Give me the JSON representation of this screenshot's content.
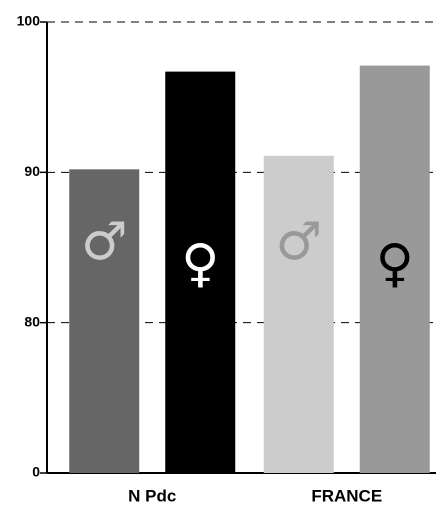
{
  "chart_data": {
    "type": "bar",
    "categories": [
      "N Pdc",
      "FRANCE"
    ],
    "series": [
      {
        "label": "♂",
        "colors": [
          "#666666",
          "#cccccc"
        ],
        "label_colors": [
          "#cccccc",
          "#999999"
        ],
        "values": [
          90.2,
          91.1
        ]
      },
      {
        "label": "♀",
        "colors": [
          "#000000",
          "#999999"
        ],
        "label_colors": [
          "#ffffff",
          "#000000"
        ],
        "values": [
          96.7,
          97.1
        ]
      }
    ],
    "ylim": [
      0,
      100
    ],
    "yticks": [
      0,
      80,
      90,
      100
    ],
    "grid": true
  }
}
